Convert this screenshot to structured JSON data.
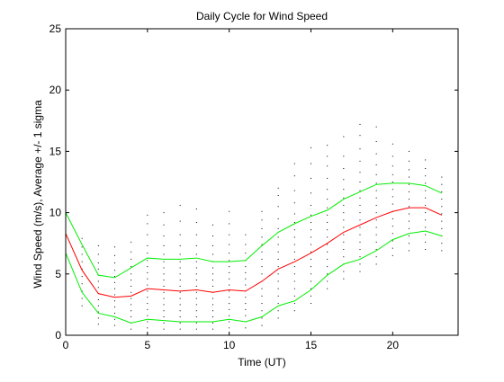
{
  "chart_data": {
    "type": "line",
    "title": "Daily Cycle for Wind Speed",
    "xlabel": "Time (UT)",
    "ylabel": "Wind Speed (m/s), Average +/- 1 sigma",
    "xlim": [
      0,
      24
    ],
    "ylim": [
      0,
      25
    ],
    "xticks": [
      0,
      5,
      10,
      15,
      20
    ],
    "yticks": [
      0,
      5,
      10,
      15,
      20,
      25
    ],
    "grid": false,
    "x": [
      0,
      1,
      2,
      3,
      4,
      5,
      6,
      7,
      8,
      9,
      10,
      11,
      12,
      13,
      14,
      15,
      16,
      17,
      18,
      19,
      20,
      21,
      22,
      23
    ],
    "series": [
      {
        "role": "mean",
        "color": "#ff0000",
        "values": [
          8.3,
          5.3,
          3.4,
          3.1,
          3.2,
          3.8,
          3.7,
          3.6,
          3.7,
          3.5,
          3.7,
          3.6,
          4.4,
          5.4,
          6.0,
          6.7,
          7.5,
          8.4,
          9.0,
          9.6,
          10.1,
          10.4,
          10.4,
          9.8
        ]
      },
      {
        "role": "mean+1sigma",
        "color": "#00ee00",
        "values": [
          10.0,
          7.4,
          4.9,
          4.7,
          5.5,
          6.3,
          6.2,
          6.2,
          6.3,
          6.0,
          6.0,
          6.1,
          7.3,
          8.4,
          9.1,
          9.7,
          10.2,
          11.1,
          11.7,
          12.3,
          12.4,
          12.4,
          12.2,
          11.6
        ]
      },
      {
        "role": "mean-1sigma",
        "color": "#00ee00",
        "values": [
          6.7,
          3.5,
          1.8,
          1.5,
          1.0,
          1.3,
          1.2,
          1.1,
          1.1,
          1.1,
          1.3,
          1.1,
          1.5,
          2.4,
          2.8,
          3.7,
          4.9,
          5.8,
          6.2,
          6.9,
          7.8,
          8.3,
          8.5,
          8.1
        ]
      }
    ],
    "observations": {
      "color": "#000000",
      "points": [
        [
          0,
          6.6
        ],
        [
          0,
          7.2
        ],
        [
          0,
          7.8
        ],
        [
          0,
          8.3
        ],
        [
          0,
          8.9
        ],
        [
          0,
          9.4
        ],
        [
          0,
          10.0
        ],
        [
          1,
          2.4
        ],
        [
          1,
          3.0
        ],
        [
          1,
          3.6
        ],
        [
          1,
          4.2
        ],
        [
          1,
          4.8
        ],
        [
          1,
          5.4
        ],
        [
          1,
          6.0
        ],
        [
          1,
          6.6
        ],
        [
          1,
          7.2
        ],
        [
          1,
          7.9
        ],
        [
          2,
          0.9
        ],
        [
          2,
          1.4
        ],
        [
          2,
          1.9
        ],
        [
          2,
          2.4
        ],
        [
          2,
          2.9
        ],
        [
          2,
          3.4
        ],
        [
          2,
          3.9
        ],
        [
          2,
          4.4
        ],
        [
          2,
          4.9
        ],
        [
          2,
          5.4
        ],
        [
          2,
          5.9
        ],
        [
          2,
          6.6
        ],
        [
          2,
          7.3
        ],
        [
          3,
          0.8
        ],
        [
          3,
          1.3
        ],
        [
          3,
          1.8
        ],
        [
          3,
          2.3
        ],
        [
          3,
          2.8
        ],
        [
          3,
          3.3
        ],
        [
          3,
          3.8
        ],
        [
          3,
          4.3
        ],
        [
          3,
          4.8
        ],
        [
          3,
          5.3
        ],
        [
          3,
          5.9
        ],
        [
          3,
          6.5
        ],
        [
          3,
          7.2
        ],
        [
          4,
          0.5
        ],
        [
          4,
          1.0
        ],
        [
          4,
          1.5
        ],
        [
          4,
          2.0
        ],
        [
          4,
          2.5
        ],
        [
          4,
          3.0
        ],
        [
          4,
          3.5
        ],
        [
          4,
          4.0
        ],
        [
          4,
          4.5
        ],
        [
          4,
          5.0
        ],
        [
          4,
          5.6
        ],
        [
          4,
          6.2
        ],
        [
          4,
          6.8
        ],
        [
          4,
          7.6
        ],
        [
          5,
          0.6
        ],
        [
          5,
          1.1
        ],
        [
          5,
          1.6
        ],
        [
          5,
          2.1
        ],
        [
          5,
          2.6
        ],
        [
          5,
          3.1
        ],
        [
          5,
          3.6
        ],
        [
          5,
          4.1
        ],
        [
          5,
          4.6
        ],
        [
          5,
          5.1
        ],
        [
          5,
          5.6
        ],
        [
          5,
          6.1
        ],
        [
          5,
          6.7
        ],
        [
          5,
          7.3
        ],
        [
          5,
          8.2
        ],
        [
          5,
          9.1
        ],
        [
          5,
          9.8
        ],
        [
          6,
          0.5
        ],
        [
          6,
          1.0
        ],
        [
          6,
          1.5
        ],
        [
          6,
          2.0
        ],
        [
          6,
          2.5
        ],
        [
          6,
          3.0
        ],
        [
          6,
          3.5
        ],
        [
          6,
          4.0
        ],
        [
          6,
          4.5
        ],
        [
          6,
          5.0
        ],
        [
          6,
          5.5
        ],
        [
          6,
          6.0
        ],
        [
          6,
          6.6
        ],
        [
          6,
          7.3
        ],
        [
          6,
          8.1
        ],
        [
          6,
          9.0
        ],
        [
          6,
          10.0
        ],
        [
          7,
          0.5
        ],
        [
          7,
          1.0
        ],
        [
          7,
          1.5
        ],
        [
          7,
          2.0
        ],
        [
          7,
          2.5
        ],
        [
          7,
          3.0
        ],
        [
          7,
          3.5
        ],
        [
          7,
          4.0
        ],
        [
          7,
          4.5
        ],
        [
          7,
          5.0
        ],
        [
          7,
          5.5
        ],
        [
          7,
          6.0
        ],
        [
          7,
          6.6
        ],
        [
          7,
          7.3
        ],
        [
          7,
          8.2
        ],
        [
          7,
          9.3
        ],
        [
          7,
          10.6
        ],
        [
          8,
          0.5
        ],
        [
          8,
          1.0
        ],
        [
          8,
          1.5
        ],
        [
          8,
          2.0
        ],
        [
          8,
          2.5
        ],
        [
          8,
          3.0
        ],
        [
          8,
          3.5
        ],
        [
          8,
          4.0
        ],
        [
          8,
          4.5
        ],
        [
          8,
          5.0
        ],
        [
          8,
          5.5
        ],
        [
          8,
          6.0
        ],
        [
          8,
          6.6
        ],
        [
          8,
          7.3
        ],
        [
          8,
          8.2
        ],
        [
          8,
          9.2
        ],
        [
          8,
          10.3
        ],
        [
          9,
          0.5
        ],
        [
          9,
          1.0
        ],
        [
          9,
          1.5
        ],
        [
          9,
          2.0
        ],
        [
          9,
          2.5
        ],
        [
          9,
          3.0
        ],
        [
          9,
          3.5
        ],
        [
          9,
          4.0
        ],
        [
          9,
          4.5
        ],
        [
          9,
          5.0
        ],
        [
          9,
          5.5
        ],
        [
          9,
          6.0
        ],
        [
          9,
          6.6
        ],
        [
          9,
          7.3
        ],
        [
          9,
          8.1
        ],
        [
          9,
          9.0
        ],
        [
          10,
          0.6
        ],
        [
          10,
          1.1
        ],
        [
          10,
          1.6
        ],
        [
          10,
          2.1
        ],
        [
          10,
          2.6
        ],
        [
          10,
          3.1
        ],
        [
          10,
          3.6
        ],
        [
          10,
          4.1
        ],
        [
          10,
          4.6
        ],
        [
          10,
          5.1
        ],
        [
          10,
          5.6
        ],
        [
          10,
          6.1
        ],
        [
          10,
          6.7
        ],
        [
          10,
          7.4
        ],
        [
          10,
          8.2
        ],
        [
          10,
          9.1
        ],
        [
          10,
          10.1
        ],
        [
          11,
          0.6
        ],
        [
          11,
          1.1
        ],
        [
          11,
          1.6
        ],
        [
          11,
          2.1
        ],
        [
          11,
          2.6
        ],
        [
          11,
          3.1
        ],
        [
          11,
          3.6
        ],
        [
          11,
          4.1
        ],
        [
          11,
          4.6
        ],
        [
          11,
          5.1
        ],
        [
          11,
          5.6
        ],
        [
          11,
          6.1
        ],
        [
          11,
          6.7
        ],
        [
          11,
          7.4
        ],
        [
          11,
          8.2
        ],
        [
          12,
          0.8
        ],
        [
          12,
          1.4
        ],
        [
          12,
          2.0
        ],
        [
          12,
          2.6
        ],
        [
          12,
          3.2
        ],
        [
          12,
          3.8
        ],
        [
          12,
          4.4
        ],
        [
          12,
          5.0
        ],
        [
          12,
          5.6
        ],
        [
          12,
          6.2
        ],
        [
          12,
          6.8
        ],
        [
          12,
          7.4
        ],
        [
          12,
          8.0
        ],
        [
          12,
          8.7
        ],
        [
          12,
          9.4
        ],
        [
          12,
          10.1
        ],
        [
          13,
          1.4
        ],
        [
          13,
          2.0
        ],
        [
          13,
          2.6
        ],
        [
          13,
          3.2
        ],
        [
          13,
          3.8
        ],
        [
          13,
          4.4
        ],
        [
          13,
          5.0
        ],
        [
          13,
          5.6
        ],
        [
          13,
          6.2
        ],
        [
          13,
          6.8
        ],
        [
          13,
          7.4
        ],
        [
          13,
          8.0
        ],
        [
          13,
          8.7
        ],
        [
          13,
          9.5
        ],
        [
          13,
          10.5
        ],
        [
          13,
          11.4
        ],
        [
          13,
          12.0
        ],
        [
          14,
          2.0
        ],
        [
          14,
          2.6
        ],
        [
          14,
          3.2
        ],
        [
          14,
          3.8
        ],
        [
          14,
          4.4
        ],
        [
          14,
          5.0
        ],
        [
          14,
          5.6
        ],
        [
          14,
          6.2
        ],
        [
          14,
          6.8
        ],
        [
          14,
          7.4
        ],
        [
          14,
          8.0
        ],
        [
          14,
          8.6
        ],
        [
          14,
          9.2
        ],
        [
          14,
          9.9
        ],
        [
          14,
          10.8
        ],
        [
          14,
          11.8
        ],
        [
          14,
          13.0
        ],
        [
          14,
          14.0
        ],
        [
          15,
          2.6
        ],
        [
          15,
          3.2
        ],
        [
          15,
          3.8
        ],
        [
          15,
          4.4
        ],
        [
          15,
          5.0
        ],
        [
          15,
          5.6
        ],
        [
          15,
          6.2
        ],
        [
          15,
          6.8
        ],
        [
          15,
          7.4
        ],
        [
          15,
          8.0
        ],
        [
          15,
          8.6
        ],
        [
          15,
          9.2
        ],
        [
          15,
          9.8
        ],
        [
          15,
          10.6
        ],
        [
          15,
          11.6
        ],
        [
          15,
          12.8
        ],
        [
          15,
          14.0
        ],
        [
          15,
          15.3
        ],
        [
          16,
          3.8
        ],
        [
          16,
          4.4
        ],
        [
          16,
          5.0
        ],
        [
          16,
          5.6
        ],
        [
          16,
          6.2
        ],
        [
          16,
          6.8
        ],
        [
          16,
          7.4
        ],
        [
          16,
          8.0
        ],
        [
          16,
          8.6
        ],
        [
          16,
          9.2
        ],
        [
          16,
          9.8
        ],
        [
          16,
          10.4
        ],
        [
          16,
          11.1
        ],
        [
          16,
          11.9
        ],
        [
          16,
          12.8
        ],
        [
          16,
          13.8
        ],
        [
          16,
          14.6
        ],
        [
          16,
          15.5
        ],
        [
          17,
          4.6
        ],
        [
          17,
          5.2
        ],
        [
          17,
          5.8
        ],
        [
          17,
          6.4
        ],
        [
          17,
          7.0
        ],
        [
          17,
          7.6
        ],
        [
          17,
          8.2
        ],
        [
          17,
          8.8
        ],
        [
          17,
          9.4
        ],
        [
          17,
          10.0
        ],
        [
          17,
          10.6
        ],
        [
          17,
          11.2
        ],
        [
          17,
          11.9
        ],
        [
          17,
          12.7
        ],
        [
          17,
          13.6
        ],
        [
          17,
          14.6
        ],
        [
          17,
          16.2
        ],
        [
          18,
          5.2
        ],
        [
          18,
          5.8
        ],
        [
          18,
          6.4
        ],
        [
          18,
          7.0
        ],
        [
          18,
          7.6
        ],
        [
          18,
          8.2
        ],
        [
          18,
          8.8
        ],
        [
          18,
          9.4
        ],
        [
          18,
          10.0
        ],
        [
          18,
          10.6
        ],
        [
          18,
          11.2
        ],
        [
          18,
          11.8
        ],
        [
          18,
          12.5
        ],
        [
          18,
          13.3
        ],
        [
          18,
          14.2
        ],
        [
          18,
          15.2
        ],
        [
          18,
          16.3
        ],
        [
          18,
          17.2
        ],
        [
          19,
          5.8
        ],
        [
          19,
          6.4
        ],
        [
          19,
          7.0
        ],
        [
          19,
          7.6
        ],
        [
          19,
          8.2
        ],
        [
          19,
          8.8
        ],
        [
          19,
          9.4
        ],
        [
          19,
          10.0
        ],
        [
          19,
          10.6
        ],
        [
          19,
          11.2
        ],
        [
          19,
          11.8
        ],
        [
          19,
          12.4
        ],
        [
          19,
          13.1
        ],
        [
          19,
          13.9
        ],
        [
          19,
          14.8
        ],
        [
          19,
          15.8
        ],
        [
          19,
          17.0
        ],
        [
          20,
          6.5
        ],
        [
          20,
          7.1
        ],
        [
          20,
          7.7
        ],
        [
          20,
          8.3
        ],
        [
          20,
          8.9
        ],
        [
          20,
          9.5
        ],
        [
          20,
          10.1
        ],
        [
          20,
          10.7
        ],
        [
          20,
          11.3
        ],
        [
          20,
          11.9
        ],
        [
          20,
          12.5
        ],
        [
          20,
          13.1
        ],
        [
          20,
          13.8
        ],
        [
          20,
          14.6
        ],
        [
          20,
          15.6
        ],
        [
          21,
          6.9
        ],
        [
          21,
          7.5
        ],
        [
          21,
          8.1
        ],
        [
          21,
          8.7
        ],
        [
          21,
          9.3
        ],
        [
          21,
          9.9
        ],
        [
          21,
          10.5
        ],
        [
          21,
          11.1
        ],
        [
          21,
          11.7
        ],
        [
          21,
          12.3
        ],
        [
          21,
          12.9
        ],
        [
          21,
          13.5
        ],
        [
          21,
          14.2
        ],
        [
          21,
          15.0
        ],
        [
          22,
          7.0
        ],
        [
          22,
          7.6
        ],
        [
          22,
          8.2
        ],
        [
          22,
          8.8
        ],
        [
          22,
          9.4
        ],
        [
          22,
          10.0
        ],
        [
          22,
          10.6
        ],
        [
          22,
          11.2
        ],
        [
          22,
          11.8
        ],
        [
          22,
          12.4
        ],
        [
          22,
          13.0
        ],
        [
          22,
          13.6
        ],
        [
          22,
          14.3
        ],
        [
          23,
          6.9
        ],
        [
          23,
          7.5
        ],
        [
          23,
          8.1
        ],
        [
          23,
          8.7
        ],
        [
          23,
          9.3
        ],
        [
          23,
          9.9
        ],
        [
          23,
          10.5
        ],
        [
          23,
          11.1
        ],
        [
          23,
          11.7
        ],
        [
          23,
          12.3
        ],
        [
          23,
          12.9
        ]
      ]
    }
  }
}
